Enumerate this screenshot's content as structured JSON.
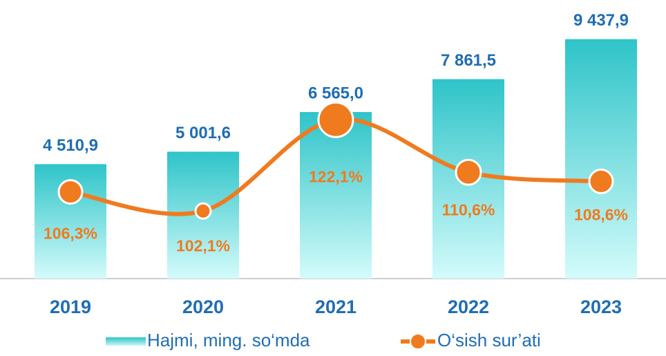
{
  "chart_data": {
    "type": "bar_line",
    "categories": [
      "2019",
      "2020",
      "2021",
      "2022",
      "2023"
    ],
    "series": [
      {
        "name": "Hajmi, ming. so‘mda",
        "type": "bar",
        "color": "#2ec4c8",
        "values": [
          4510.9,
          5001.6,
          6565.0,
          7861.5,
          9437.9
        ],
        "value_labels": [
          "4 510,9",
          "5 001,6",
          "6 565,0",
          "7 861,5",
          "9 437,9"
        ]
      },
      {
        "name": "O‘sish sur’ati",
        "type": "line",
        "axis": "y2",
        "color": "#f07a1e",
        "values": [
          106.3,
          102.1,
          122.1,
          110.6,
          108.6
        ],
        "value_labels": [
          "106,3%",
          "102,1%",
          "122,1%",
          "110,6%",
          "108,6%"
        ]
      }
    ],
    "ylim": [
      0,
      10000
    ],
    "y2lim": [
      87.3,
      142.9
    ],
    "legend": "bottom"
  }
}
